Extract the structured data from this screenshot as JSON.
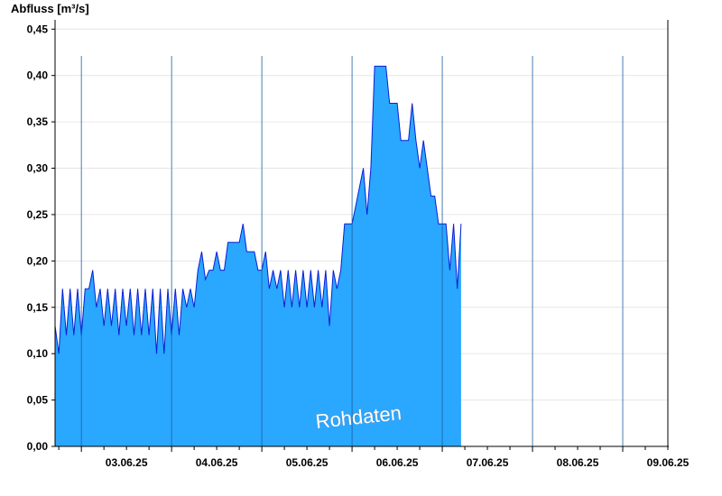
{
  "chart_data": {
    "type": "area",
    "title": "",
    "ylabel": "Abfluss [m³/s]",
    "xlabel": "",
    "ylim": [
      0,
      0.46
    ],
    "y_ticks": [
      "0,00",
      "0,05",
      "0,10",
      "0,15",
      "0,20",
      "0,25",
      "0,30",
      "0,35",
      "0,40",
      "0,45"
    ],
    "x_ticks": [
      "03.06.25",
      "04.06.25",
      "05.06.25",
      "06.06.25",
      "07.06.25",
      "08.06.25",
      "09.06.25"
    ],
    "x_range_days": [
      "02.06.25 17:00",
      "09.06.25 12:00"
    ],
    "grid": true,
    "watermark": "Rohdaten",
    "colors": {
      "fill": "#2aa7ff",
      "line": "#0a1fd6",
      "grid": "#e6e6e6",
      "day_separator": "#1a5fa0"
    },
    "series": [
      {
        "values_sampled": [
          [
            "02.06.25 17:00",
            0.13
          ],
          [
            "02.06.25 18:00",
            0.1
          ],
          [
            "02.06.25 19:00",
            0.17
          ],
          [
            "02.06.25 20:00",
            0.12
          ],
          [
            "02.06.25 21:00",
            0.17
          ],
          [
            "02.06.25 22:00",
            0.12
          ],
          [
            "02.06.25 23:00",
            0.17
          ],
          [
            "03.06.25 00:00",
            0.12
          ],
          [
            "03.06.25 01:00",
            0.17
          ],
          [
            "03.06.25 02:00",
            0.17
          ],
          [
            "03.06.25 03:00",
            0.19
          ],
          [
            "03.06.25 04:00",
            0.15
          ],
          [
            "03.06.25 05:00",
            0.17
          ],
          [
            "03.06.25 06:00",
            0.13
          ],
          [
            "03.06.25 07:00",
            0.17
          ],
          [
            "03.06.25 08:00",
            0.13
          ],
          [
            "03.06.25 09:00",
            0.17
          ],
          [
            "03.06.25 10:00",
            0.12
          ],
          [
            "03.06.25 11:00",
            0.17
          ],
          [
            "03.06.25 12:00",
            0.13
          ],
          [
            "03.06.25 13:00",
            0.17
          ],
          [
            "03.06.25 14:00",
            0.12
          ],
          [
            "03.06.25 15:00",
            0.17
          ],
          [
            "03.06.25 16:00",
            0.12
          ],
          [
            "03.06.25 17:00",
            0.17
          ],
          [
            "03.06.25 18:00",
            0.12
          ],
          [
            "03.06.25 19:00",
            0.17
          ],
          [
            "03.06.25 20:00",
            0.1
          ],
          [
            "03.06.25 21:00",
            0.17
          ],
          [
            "03.06.25 22:00",
            0.1
          ],
          [
            "03.06.25 23:00",
            0.17
          ],
          [
            "04.06.25 00:00",
            0.12
          ],
          [
            "04.06.25 01:00",
            0.17
          ],
          [
            "04.06.25 02:00",
            0.12
          ],
          [
            "04.06.25 03:00",
            0.17
          ],
          [
            "04.06.25 04:00",
            0.15
          ],
          [
            "04.06.25 05:00",
            0.17
          ],
          [
            "04.06.25 06:00",
            0.15
          ],
          [
            "04.06.25 07:00",
            0.19
          ],
          [
            "04.06.25 08:00",
            0.21
          ],
          [
            "04.06.25 09:00",
            0.18
          ],
          [
            "04.06.25 10:00",
            0.19
          ],
          [
            "04.06.25 11:00",
            0.19
          ],
          [
            "04.06.25 12:00",
            0.21
          ],
          [
            "04.06.25 13:00",
            0.19
          ],
          [
            "04.06.25 14:00",
            0.19
          ],
          [
            "04.06.25 15:00",
            0.22
          ],
          [
            "04.06.25 16:00",
            0.22
          ],
          [
            "04.06.25 17:00",
            0.22
          ],
          [
            "04.06.25 18:00",
            0.22
          ],
          [
            "04.06.25 19:00",
            0.24
          ],
          [
            "04.06.25 20:00",
            0.21
          ],
          [
            "04.06.25 21:00",
            0.21
          ],
          [
            "04.06.25 22:00",
            0.21
          ],
          [
            "04.06.25 23:00",
            0.19
          ],
          [
            "05.06.25 00:00",
            0.19
          ],
          [
            "05.06.25 01:00",
            0.21
          ],
          [
            "05.06.25 02:00",
            0.17
          ],
          [
            "05.06.25 03:00",
            0.19
          ],
          [
            "05.06.25 04:00",
            0.17
          ],
          [
            "05.06.25 05:00",
            0.19
          ],
          [
            "05.06.25 06:00",
            0.15
          ],
          [
            "05.06.25 07:00",
            0.19
          ],
          [
            "05.06.25 08:00",
            0.15
          ],
          [
            "05.06.25 09:00",
            0.19
          ],
          [
            "05.06.25 10:00",
            0.15
          ],
          [
            "05.06.25 11:00",
            0.19
          ],
          [
            "05.06.25 12:00",
            0.15
          ],
          [
            "05.06.25 13:00",
            0.19
          ],
          [
            "05.06.25 14:00",
            0.15
          ],
          [
            "05.06.25 15:00",
            0.19
          ],
          [
            "05.06.25 16:00",
            0.15
          ],
          [
            "05.06.25 17:00",
            0.19
          ],
          [
            "05.06.25 18:00",
            0.13
          ],
          [
            "05.06.25 19:00",
            0.19
          ],
          [
            "05.06.25 20:00",
            0.17
          ],
          [
            "05.06.25 21:00",
            0.19
          ],
          [
            "05.06.25 22:00",
            0.24
          ],
          [
            "05.06.25 23:00",
            0.24
          ],
          [
            "06.06.25 00:00",
            0.24
          ],
          [
            "06.06.25 01:00",
            0.26
          ],
          [
            "06.06.25 02:00",
            0.28
          ],
          [
            "06.06.25 03:00",
            0.3
          ],
          [
            "06.06.25 04:00",
            0.25
          ],
          [
            "06.06.25 05:00",
            0.3
          ],
          [
            "06.06.25 06:00",
            0.41
          ],
          [
            "06.06.25 09:00",
            0.41
          ],
          [
            "06.06.25 10:00",
            0.37
          ],
          [
            "06.06.25 12:00",
            0.37
          ],
          [
            "06.06.25 13:00",
            0.33
          ],
          [
            "06.06.25 15:00",
            0.33
          ],
          [
            "06.06.25 16:00",
            0.37
          ],
          [
            "06.06.25 17:00",
            0.33
          ],
          [
            "06.06.25 18:00",
            0.3
          ],
          [
            "06.06.25 19:00",
            0.33
          ],
          [
            "06.06.25 20:00",
            0.3
          ],
          [
            "06.06.25 21:00",
            0.27
          ],
          [
            "06.06.25 22:00",
            0.27
          ],
          [
            "06.06.25 23:00",
            0.24
          ],
          [
            "07.06.25 00:00",
            0.24
          ],
          [
            "07.06.25 01:00",
            0.24
          ],
          [
            "07.06.25 02:00",
            0.19
          ],
          [
            "07.06.25 03:00",
            0.24
          ],
          [
            "07.06.25 04:00",
            0.17
          ],
          [
            "07.06.25 05:00",
            0.24
          ]
        ]
      }
    ]
  }
}
